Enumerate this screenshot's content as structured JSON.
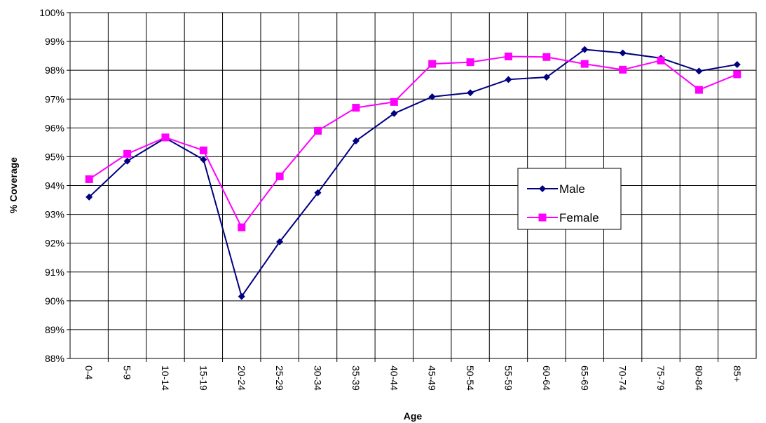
{
  "chart_data": {
    "type": "line",
    "categories": [
      "0-4",
      "5-9",
      "10-14",
      "15-19",
      "20-24",
      "25-29",
      "30-34",
      "35-39",
      "40-44",
      "45-49",
      "50-54",
      "55-59",
      "60-64",
      "65-69",
      "70-74",
      "75-79",
      "80-84",
      "85+"
    ],
    "series": [
      {
        "name": "Male",
        "color": "#000080",
        "marker": "diamond",
        "values": [
          93.6,
          94.85,
          95.65,
          94.9,
          90.15,
          92.05,
          93.75,
          95.55,
          96.5,
          97.08,
          97.22,
          97.68,
          97.76,
          98.72,
          98.6,
          98.42,
          97.97,
          98.2
        ]
      },
      {
        "name": "Female",
        "color": "#FF00FF",
        "marker": "square",
        "values": [
          94.22,
          95.1,
          95.67,
          95.22,
          92.55,
          94.32,
          95.9,
          96.7,
          96.9,
          98.22,
          98.28,
          98.48,
          98.46,
          98.22,
          98.02,
          98.34,
          97.32,
          97.86
        ]
      }
    ],
    "xlabel": "Age",
    "ylabel": "% Coverage",
    "ylim": [
      88,
      100
    ],
    "yticks": [
      "88%",
      "89%",
      "90%",
      "91%",
      "92%",
      "93%",
      "94%",
      "95%",
      "96%",
      "97%",
      "98%",
      "99%",
      "100%"
    ],
    "grid": true,
    "legend_position": "right-center"
  }
}
